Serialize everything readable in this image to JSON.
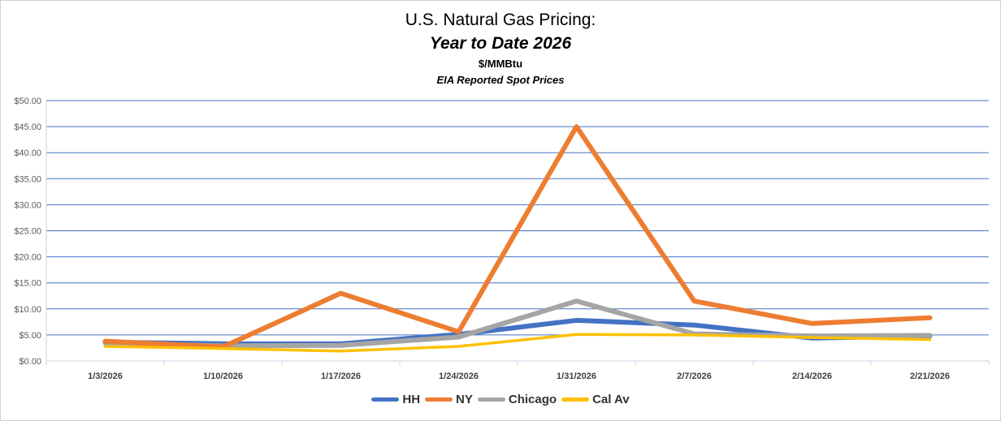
{
  "chart_data": {
    "type": "line",
    "title": "U.S. Natural Gas Pricing:",
    "subtitle": "Year to Date 2026",
    "unit_label": "$/MMBtu",
    "source_label": "EIA Reported Spot Prices",
    "xlabel": "",
    "ylabel": "",
    "ylim": [
      0,
      50
    ],
    "yticks": [
      "$0.00",
      "$5.00",
      "$10.00",
      "$15.00",
      "$20.00",
      "$25.00",
      "$30.00",
      "$35.00",
      "$40.00",
      "$45.00",
      "$50.00"
    ],
    "categories": [
      "1/3/2026",
      "1/10/2026",
      "1/17/2026",
      "1/24/2026",
      "1/31/2026",
      "2/7/2026",
      "2/14/2026",
      "2/21/2026"
    ],
    "grid": true,
    "legend_position": "bottom",
    "series": [
      {
        "name": "HH",
        "color": "#4472C4",
        "values": [
          3.6,
          3.3,
          3.3,
          5.1,
          7.8,
          6.9,
          4.4,
          4.8
        ]
      },
      {
        "name": "NY",
        "color": "#ED7D31",
        "values": [
          3.8,
          2.7,
          13.0,
          5.6,
          45.0,
          11.5,
          7.2,
          8.3
        ]
      },
      {
        "name": "Chicago",
        "color": "#A5A5A5",
        "values": [
          3.4,
          2.9,
          3.0,
          4.6,
          11.5,
          5.2,
          4.8,
          4.9
        ]
      },
      {
        "name": "Cal Av",
        "color": "#FFC000",
        "values": [
          2.8,
          2.4,
          1.9,
          2.8,
          5.1,
          5.0,
          4.5,
          4.1
        ]
      }
    ]
  }
}
